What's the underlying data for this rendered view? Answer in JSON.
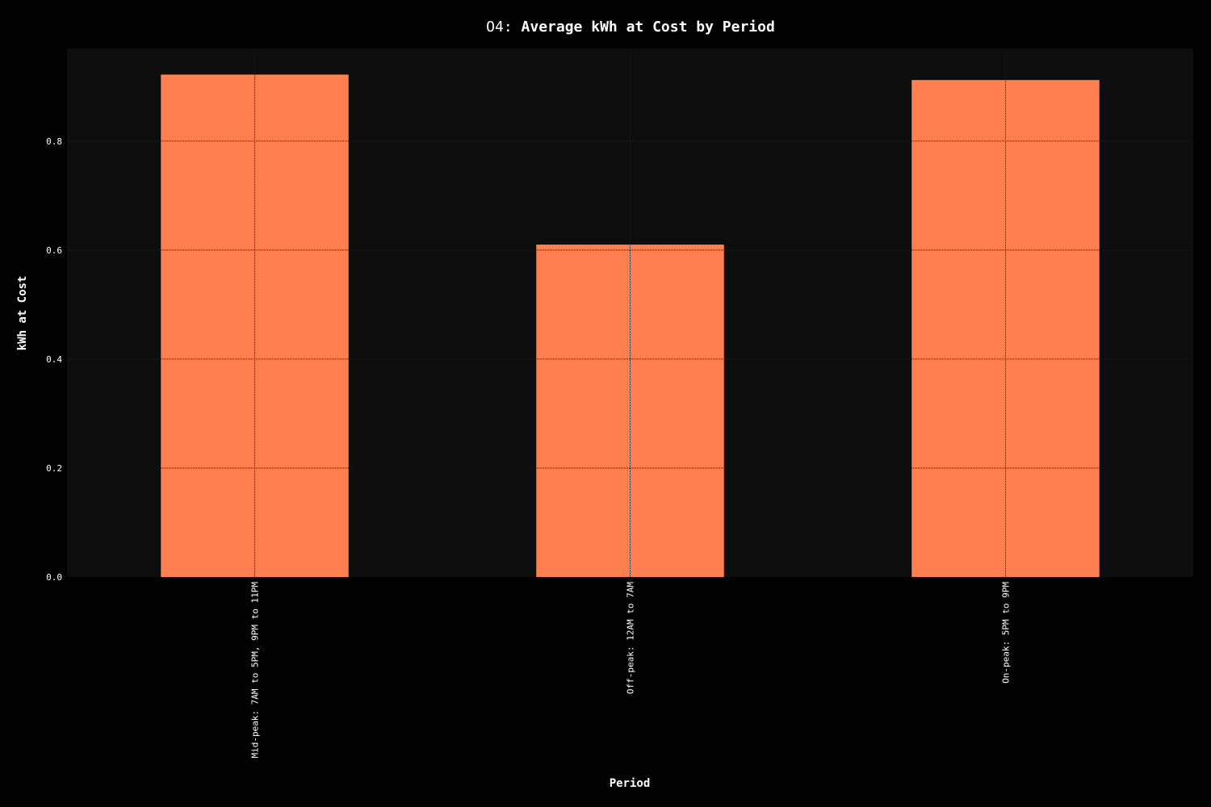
{
  "colors": {
    "background": "#020202",
    "plot_background": "#0e0e0e",
    "bar": "#ff7f50",
    "text": "#ffffff",
    "grid": "#3a3a3a"
  },
  "chart_data": {
    "type": "bar",
    "title_prefix": "O4: ",
    "title": "Average kWh at Cost by Period",
    "xlabel": "Period",
    "ylabel": "kWh at Cost",
    "categories": [
      "Mid-peak: 7AM to 5PM, 9PM to 11PM",
      "Off-peak: 12AM to 7AM",
      "On-peak: 5PM to 9PM"
    ],
    "values": [
      0.922,
      0.61,
      0.912
    ],
    "ylim": [
      0,
      0.97
    ],
    "yticks": [
      "0.0",
      "0.2",
      "0.4",
      "0.6",
      "0.8"
    ],
    "grid": true,
    "legend": "none"
  }
}
